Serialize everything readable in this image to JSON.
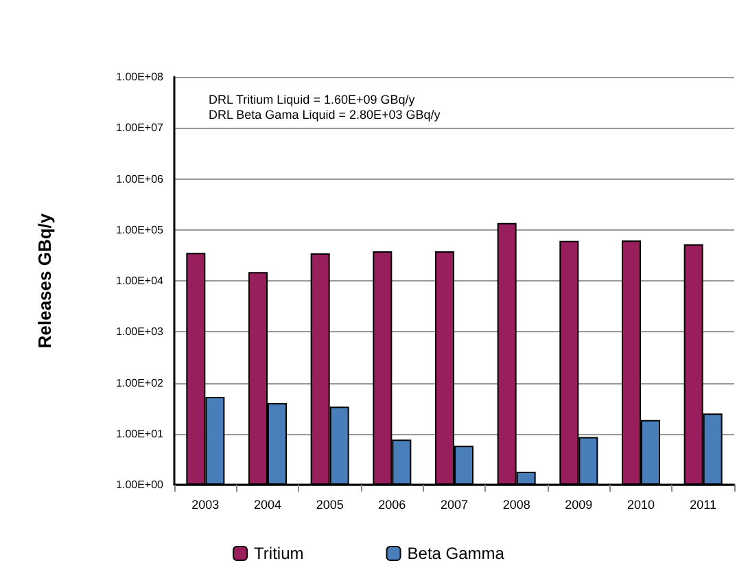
{
  "chart_data": {
    "type": "bar",
    "ylabel": "Releases GBq/y",
    "annotations": [
      "DRL Tritium Liquid = 1.60E+09 GBq/y",
      "DRL Beta Gama Liquid = 2.80E+03 GBq/y"
    ],
    "categories": [
      "2003",
      "2004",
      "2005",
      "2006",
      "2007",
      "2008",
      "2009",
      "2010",
      "2011"
    ],
    "series": [
      {
        "name": "Tritium",
        "color": "#991f5c",
        "values": [
          35500,
          14800,
          34500,
          38000,
          38000,
          136000,
          61000,
          62000,
          52000
        ]
      },
      {
        "name": "Beta Gamma",
        "color": "#4a7ebb",
        "values": [
          53,
          40,
          34,
          7.7,
          5.8,
          1.8,
          8.6,
          18.6,
          25
        ]
      }
    ],
    "log": true,
    "ylim": [
      1,
      100000000
    ],
    "yticks": [
      {
        "value": 1,
        "label": "1.00E+00"
      },
      {
        "value": 10,
        "label": "1.00E+01"
      },
      {
        "value": 100,
        "label": "1.00E+02"
      },
      {
        "value": 1000,
        "label": "1.00E+03"
      },
      {
        "value": 10000,
        "label": "1.00E+04"
      },
      {
        "value": 100000,
        "label": "1.00E+05"
      },
      {
        "value": 1000000,
        "label": "1.00E+06"
      },
      {
        "value": 10000000,
        "label": "1.00E+07"
      },
      {
        "value": 100000000,
        "label": "1.00E+08"
      }
    ],
    "grid": "y",
    "legend": "bottom"
  }
}
